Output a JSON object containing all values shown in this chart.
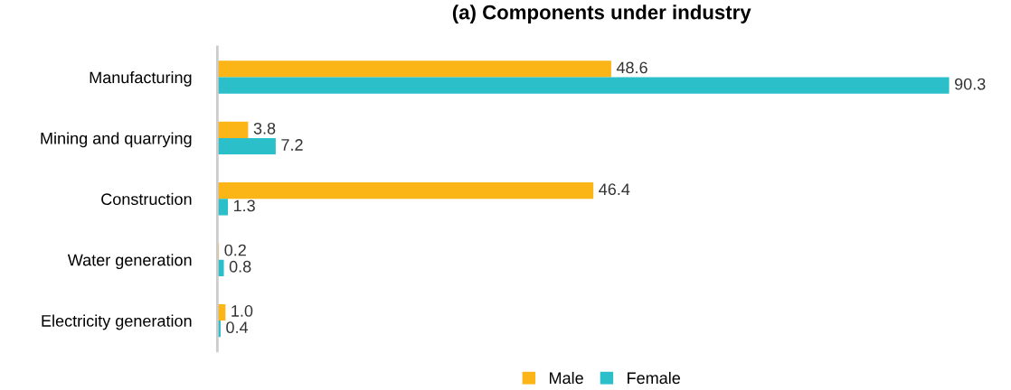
{
  "chart_data": {
    "type": "bar",
    "orientation": "horizontal",
    "title": "(a) Components under industry",
    "categories": [
      "Manufacturing",
      "Mining and quarrying",
      "Construction",
      "Water generation",
      "Electricity generation"
    ],
    "series": [
      {
        "name": "Male",
        "color": "#fbb516",
        "values": [
          48.6,
          3.8,
          46.4,
          0.2,
          1.0
        ],
        "value_labels": [
          "48.6",
          "3.8",
          "46.4",
          "0.2",
          "1.0"
        ]
      },
      {
        "name": "Female",
        "color": "#2bbfca",
        "values": [
          90.3,
          7.2,
          1.3,
          0.8,
          0.4
        ],
        "value_labels": [
          "90.3",
          "7.2",
          "1.3",
          "0.8",
          "0.4"
        ]
      }
    ],
    "tick_labels": "y",
    "grid": false,
    "legend": "bottom"
  }
}
